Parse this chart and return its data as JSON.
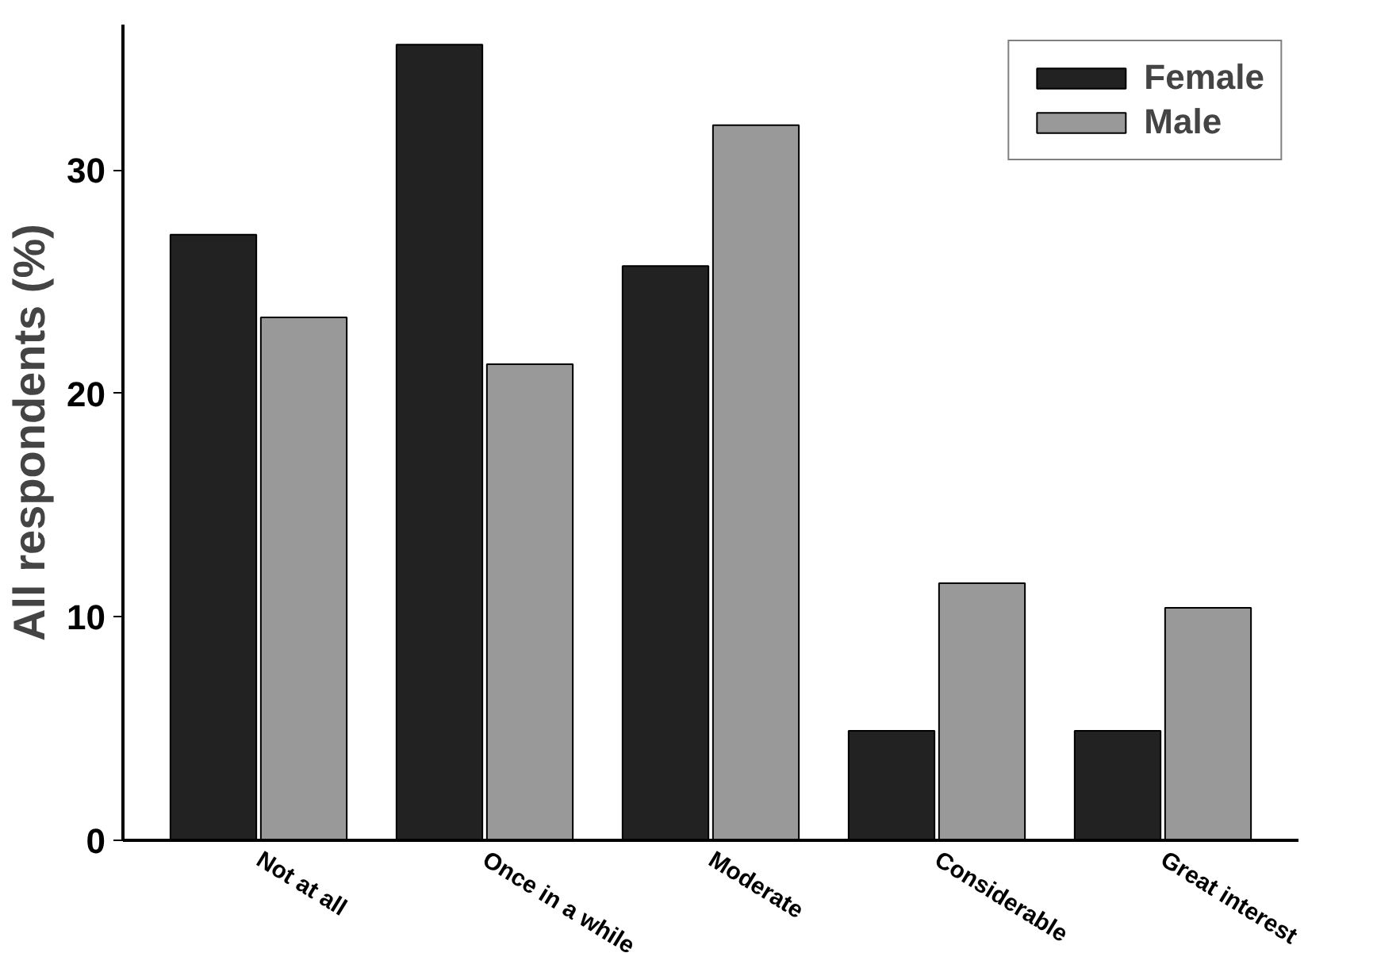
{
  "chart_data": {
    "type": "bar",
    "ylabel": "All respondents (%)",
    "categories": [
      "Not at all",
      "Once in a while",
      "Moderate",
      "Considerable",
      "Great interest"
    ],
    "series": [
      {
        "name": "Female",
        "color": "#222222",
        "values": [
          27.1,
          35.6,
          25.7,
          4.9,
          4.9
        ]
      },
      {
        "name": "Male",
        "color": "#999999",
        "values": [
          23.4,
          21.3,
          32.0,
          11.5,
          10.4
        ]
      }
    ],
    "ylim": [
      0,
      36.5
    ],
    "yticks": [
      0,
      10,
      20,
      30
    ],
    "grid": false,
    "legend": "top right"
  }
}
